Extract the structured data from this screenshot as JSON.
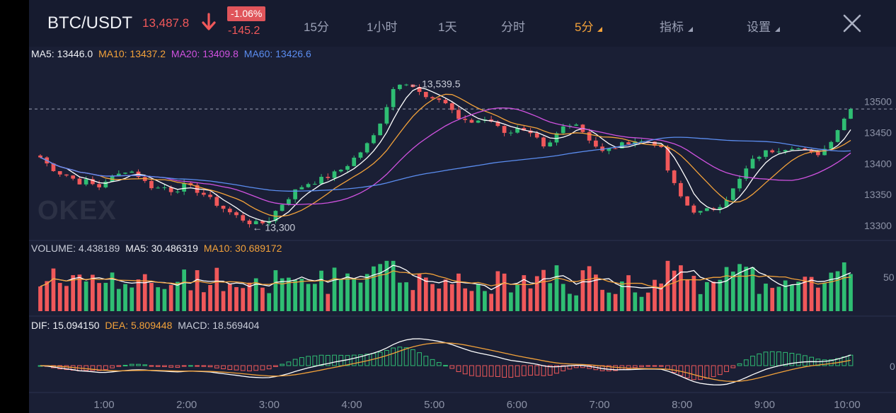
{
  "header": {
    "pair": "BTC/USDT",
    "last_price": "13,487.8",
    "change_pct": "-1.06%",
    "change_abs": "-145.2",
    "tabs": [
      "15分",
      "1小时",
      "1天",
      "分时",
      "5分",
      "指标",
      "设置"
    ],
    "active_tab": "5分",
    "dropdown_tabs": [
      "5分",
      "指标",
      "设置"
    ]
  },
  "legends": {
    "ma": {
      "ma5": "MA5: 13446.0",
      "ma10": "MA10: 13437.2",
      "ma20": "MA20: 13409.8",
      "ma60": "MA60: 13426.6"
    },
    "volume": {
      "vol": "VOLUME: 4.438189",
      "ma5": "MA5: 30.486319",
      "ma10": "MA10: 30.689172"
    },
    "macd": {
      "dif": "DIF: 15.094150",
      "dea": "DEA: 5.809448",
      "macd": "MACD: 18.569404"
    }
  },
  "watermark": "OKEX",
  "colors": {
    "up": "#2fbe73",
    "down": "#f0585a",
    "ma5": "#ffffff",
    "ma10": "#f3a23a",
    "ma20": "#d052e0",
    "ma60": "#5b8df0",
    "background": "#1a1f35",
    "text": "#eef0f5"
  },
  "chart_data": {
    "type": "candlestick",
    "interval": "5分",
    "x_tick_labels": [
      "1:00",
      "2:00",
      "3:00",
      "4:00",
      "5:00",
      "6:00",
      "7:00",
      "8:00",
      "9:00",
      "10:00"
    ],
    "price_axis": {
      "ticks": [
        "13500",
        "13450",
        "13400",
        "13350",
        "13300"
      ],
      "range": [
        13290,
        13555
      ]
    },
    "last_price_line": 13487.8,
    "annotations": {
      "high": "13,539.5",
      "low": "13,300"
    },
    "price_path": [
      13410,
      13395,
      13385,
      13380,
      13370,
      13372,
      13360,
      13375,
      13380,
      13390,
      13385,
      13370,
      13360,
      13362,
      13355,
      13365,
      13360,
      13352,
      13340,
      13330,
      13320,
      13312,
      13305,
      13302,
      13310,
      13330,
      13345,
      13360,
      13368,
      13372,
      13378,
      13385,
      13395,
      13410,
      13425,
      13445,
      13480,
      13520,
      13535,
      13525,
      13510,
      13500,
      13505,
      13490,
      13470,
      13465,
      13470,
      13475,
      13458,
      13450,
      13455,
      13448,
      13440,
      13420,
      13445,
      13462,
      13468,
      13450,
      13432,
      13418,
      13425,
      13430,
      13438,
      13435,
      13436,
      13428,
      13380,
      13350,
      13330,
      13320,
      13325,
      13330,
      13345,
      13365,
      13390,
      13410,
      13418,
      13422,
      13425,
      13428,
      13420,
      13415,
      13418,
      13440,
      13465,
      13488
    ],
    "volume_axis": {
      "ticks": [
        "50"
      ],
      "range": [
        0,
        78
      ]
    },
    "macd_axis": {
      "ticks": [
        "0"
      ]
    }
  }
}
